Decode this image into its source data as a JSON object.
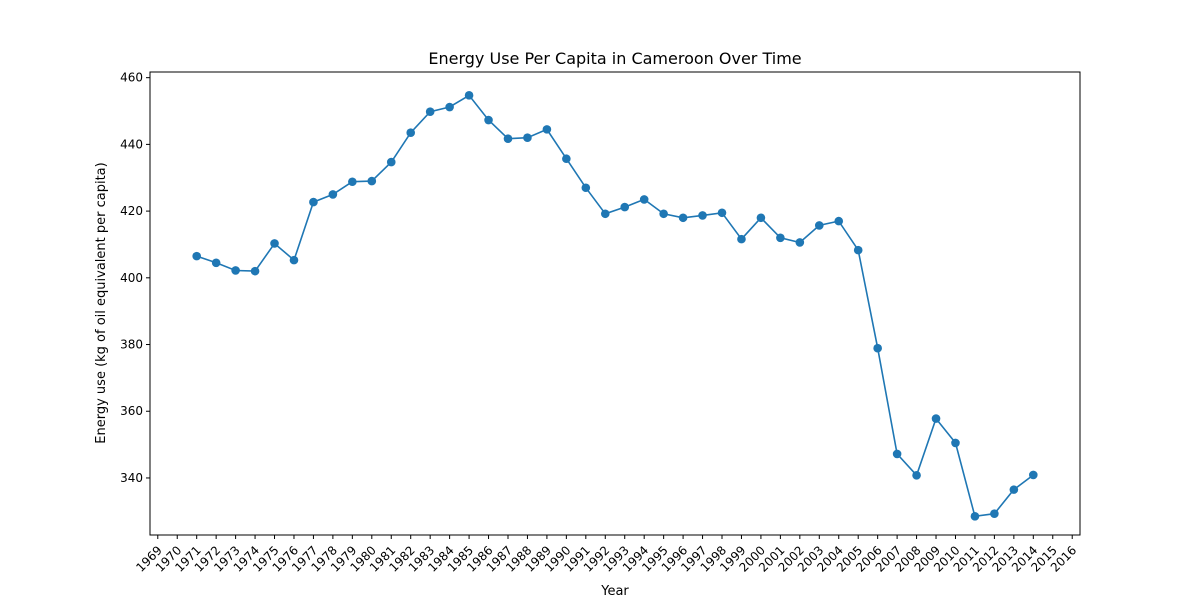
{
  "chart_data": {
    "type": "line",
    "title": "Energy Use Per Capita in Cameroon Over Time",
    "xlabel": "Year",
    "ylabel": "Energy use (kg of oil equivalent per capita)",
    "xlim": [
      1968.6,
      2016.4
    ],
    "ylim": [
      322.9,
      461.7
    ],
    "x_ticks": [
      1969,
      1970,
      1971,
      1972,
      1973,
      1974,
      1975,
      1976,
      1977,
      1978,
      1979,
      1980,
      1981,
      1982,
      1983,
      1984,
      1985,
      1986,
      1987,
      1988,
      1989,
      1990,
      1991,
      1992,
      1993,
      1994,
      1995,
      1996,
      1997,
      1998,
      1999,
      2000,
      2001,
      2002,
      2003,
      2004,
      2005,
      2006,
      2007,
      2008,
      2009,
      2010,
      2011,
      2012,
      2013,
      2014,
      2015,
      2016
    ],
    "y_ticks": [
      340,
      360,
      380,
      400,
      420,
      440,
      460
    ],
    "grid": false,
    "color": "#1f77b4",
    "series": [
      {
        "x": [
          1971,
          1972,
          1973,
          1974,
          1975,
          1976,
          1977,
          1978,
          1979,
          1980,
          1981,
          1982,
          1983,
          1984,
          1985,
          1986,
          1987,
          1988,
          1989,
          1990,
          1991,
          1992,
          1993,
          1994,
          1995,
          1996,
          1997,
          1998,
          1999,
          2000,
          2001,
          2002,
          2003,
          2004,
          2005,
          2006,
          2007,
          2008,
          2009,
          2010,
          2011,
          2012,
          2013,
          2014
        ],
        "values": [
          406.5,
          404.5,
          402.2,
          402.0,
          410.3,
          405.3,
          422.7,
          425.0,
          428.8,
          429.0,
          434.7,
          443.5,
          449.8,
          451.2,
          454.7,
          447.3,
          441.7,
          442.0,
          444.5,
          435.7,
          427.0,
          419.2,
          421.2,
          423.5,
          419.2,
          418.0,
          418.7,
          419.5,
          411.6,
          418.0,
          412.0,
          410.6,
          415.7,
          417.0,
          408.3,
          378.9,
          347.2,
          340.8,
          357.8,
          350.5,
          328.5,
          329.3,
          336.5,
          340.9
        ]
      }
    ]
  }
}
